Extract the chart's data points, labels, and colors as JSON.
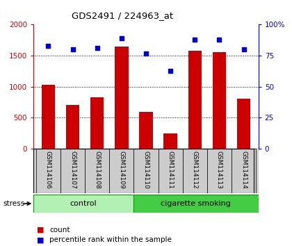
{
  "title": "GDS2491 / 224963_at",
  "samples": [
    "GSM114106",
    "GSM114107",
    "GSM114108",
    "GSM114109",
    "GSM114110",
    "GSM114111",
    "GSM114112",
    "GSM114113",
    "GSM114114"
  ],
  "counts": [
    1030,
    710,
    830,
    1650,
    600,
    250,
    1580,
    1560,
    810
  ],
  "percentiles": [
    83,
    80,
    81,
    89,
    77,
    63,
    88,
    88,
    80
  ],
  "groups": [
    {
      "label": "control",
      "start": 0,
      "end": 4,
      "color": "#b3f0b3"
    },
    {
      "label": "cigarette smoking",
      "start": 4,
      "end": 9,
      "color": "#44cc44"
    }
  ],
  "stress_label": "stress",
  "bar_color": "#cc0000",
  "dot_color": "#0000cc",
  "ylim_left": [
    0,
    2000
  ],
  "ylim_right": [
    0,
    100
  ],
  "yticks_left": [
    0,
    500,
    1000,
    1500,
    2000
  ],
  "ytick_labels_left": [
    "0",
    "500",
    "1000",
    "1500",
    "2000"
  ],
  "yticks_right": [
    0,
    25,
    50,
    75,
    100
  ],
  "ytick_labels_right": [
    "0",
    "25",
    "50",
    "75",
    "100%"
  ],
  "legend_count_label": "count",
  "legend_pct_label": "percentile rank within the sample",
  "bg_color": "#ffffff",
  "plot_bg": "#ffffff",
  "xlabel_area_color": "#cccccc",
  "grid_lines": [
    500,
    1000,
    1500
  ],
  "bar_width": 0.55
}
